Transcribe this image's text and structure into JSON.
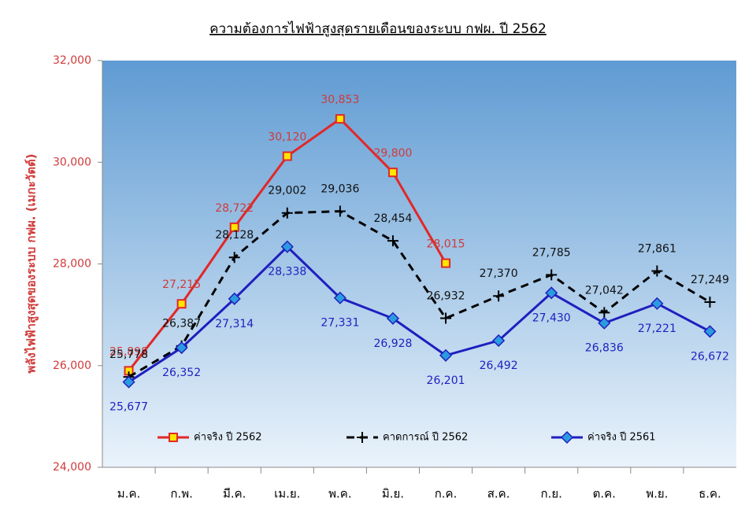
{
  "chart_data": {
    "type": "line",
    "title": "ความต้องการไฟฟ้าสูงสุดรายเดือนของระบบ กฟผ. ปี 2562",
    "y_label": "พลังไฟฟ้าสูงสุดของระบบ กฟผ. (เมกะวัตต์)",
    "categories": [
      "ม.ค.",
      "ก.พ.",
      "มี.ค.",
      "เม.ย.",
      "พ.ค.",
      "มิ.ย.",
      "ก.ค.",
      "ส.ค.",
      "ก.ย.",
      "ต.ค.",
      "พ.ย.",
      "ธ.ค."
    ],
    "series": [
      {
        "name": "ค่าจริง ปี 2562",
        "color": "#e02828",
        "marker": "square",
        "dashed": false,
        "values": [
          25898,
          27215,
          28722,
          30120,
          30853,
          29800,
          28015,
          null,
          null,
          null,
          null,
          null
        ],
        "value_labels": [
          "25,898",
          "27,215",
          "28,722",
          "30,120",
          "30,853",
          "29,800",
          "28,015",
          null,
          null,
          null,
          null,
          null
        ]
      },
      {
        "name": "คาดการณ์ ปี 2562",
        "color": "#000000",
        "marker": "plus",
        "dashed": true,
        "values": [
          25778,
          26387,
          28128,
          29002,
          29036,
          28454,
          26932,
          27370,
          27785,
          27042,
          27861,
          27249
        ],
        "value_labels": [
          "25,778",
          "26,387",
          "28,128",
          "29,002",
          "29,036",
          "28,454",
          "26,932",
          "27,370",
          "27,785",
          "27,042",
          "27,861",
          "27,249"
        ]
      },
      {
        "name": "ค่าจริง ปี 2561",
        "color": "#1f1fbf",
        "marker": "diamond",
        "dashed": false,
        "values": [
          25677,
          26352,
          27314,
          28338,
          27331,
          26928,
          26201,
          26492,
          27430,
          26836,
          27221,
          26672
        ],
        "value_labels": [
          "25,677",
          "26,352",
          "27,314",
          "28,338",
          "27,331",
          "26,928",
          "26,201",
          "26,492",
          "27,430",
          "26,836",
          "27,221",
          "26,672"
        ]
      }
    ],
    "ylim": [
      24000,
      32000
    ],
    "yticks": [
      {
        "value": 24000,
        "label": "24,000"
      },
      {
        "value": 26000,
        "label": "26,000"
      },
      {
        "value": 28000,
        "label": "28,000"
      },
      {
        "value": 30000,
        "label": "30,000"
      },
      {
        "value": 32000,
        "label": "32,000"
      }
    ]
  }
}
